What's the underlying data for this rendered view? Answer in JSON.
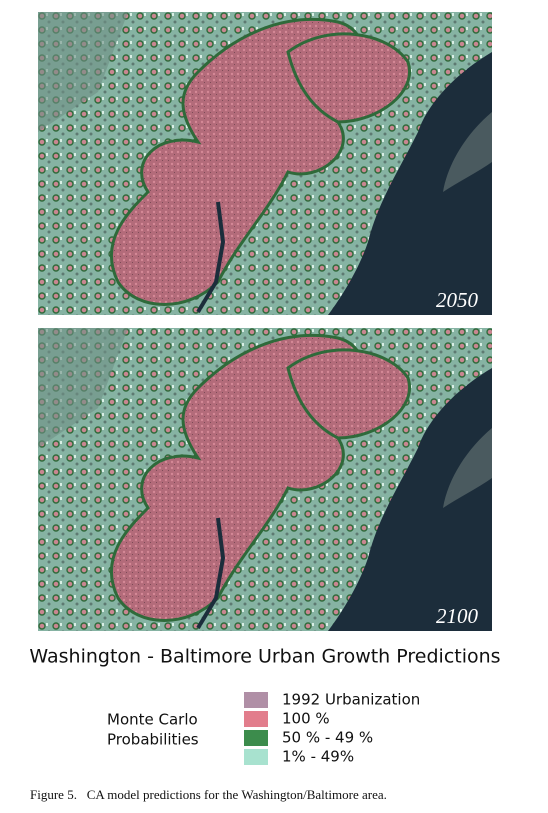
{
  "figure": {
    "panels": [
      {
        "label": "2050"
      },
      {
        "label": "2100"
      }
    ],
    "title": "Washington - Baltimore Urban Growth Predictions",
    "legend": {
      "title_lines": [
        "Monte Carlo",
        "Probabilities"
      ],
      "items": [
        {
          "label": "1992 Urbanization",
          "color": "#b08fa6"
        },
        {
          "label": "100 %",
          "color": "#e27d8c"
        },
        {
          "label": "50 % - 49 %",
          "color": "#3c8c4c"
        },
        {
          "label": "1% - 49%",
          "color": "#a8e2cf"
        }
      ]
    },
    "caption": "Figure 5.   CA model predictions for the Washington/Baltimore area."
  }
}
